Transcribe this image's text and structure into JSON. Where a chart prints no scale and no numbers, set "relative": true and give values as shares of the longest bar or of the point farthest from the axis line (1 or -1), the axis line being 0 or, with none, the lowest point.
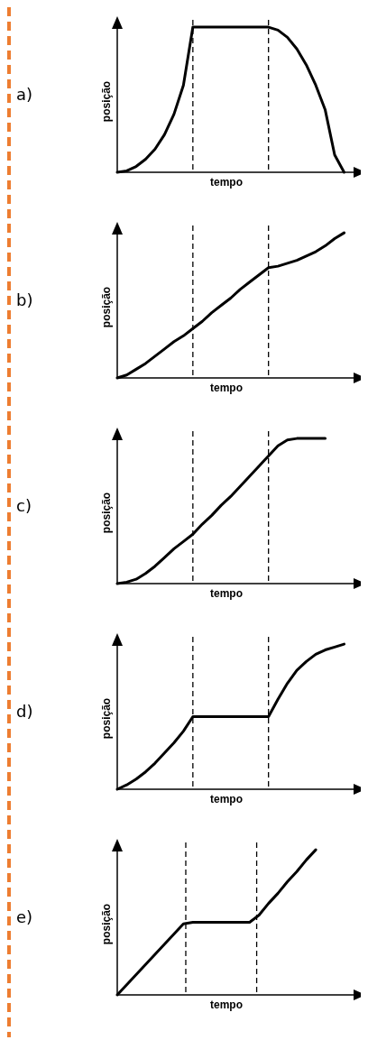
{
  "chart_data": [
    {
      "type": "line",
      "title": "a)",
      "xlabel": "tempo",
      "ylabel": "posição",
      "relative": true,
      "categories": [
        null,
        null,
        null,
        null,
        null,
        null,
        null,
        null,
        null,
        null,
        null,
        null,
        null,
        null,
        null,
        null,
        null,
        null,
        null,
        null,
        null,
        null,
        null,
        null,
        null
      ],
      "series": [
        {
          "color": "#000000",
          "values": [
            0,
            0.01,
            0.04,
            0.09,
            0.16,
            0.26,
            0.4,
            0.6,
            1,
            1,
            1,
            1,
            1,
            1,
            1,
            1,
            1,
            0.98,
            0.93,
            0.85,
            0.74,
            0.6,
            0.43,
            0.12,
            0
          ]
        }
      ]
    },
    {
      "type": "line",
      "title": "b)",
      "xlabel": "tempo",
      "ylabel": "posição",
      "relative": true,
      "categories": [
        null,
        null,
        null,
        null,
        null,
        null,
        null,
        null,
        null,
        null,
        null,
        null,
        null,
        null,
        null,
        null,
        null,
        null,
        null,
        null,
        null,
        null,
        null,
        null,
        null
      ],
      "series": [
        {
          "color": "#000000",
          "values": [
            0,
            0.02,
            0.06,
            0.1,
            0.15,
            0.2,
            0.25,
            0.29,
            0.34,
            0.39,
            0.45,
            0.5,
            0.55,
            0.61,
            0.66,
            0.71,
            0.76,
            0.77,
            0.79,
            0.81,
            0.84,
            0.87,
            0.91,
            0.96,
            1
          ]
        }
      ]
    },
    {
      "type": "line",
      "title": "c)",
      "xlabel": "tempo",
      "ylabel": "posição",
      "relative": true,
      "categories": [
        null,
        null,
        null,
        null,
        null,
        null,
        null,
        null,
        null,
        null,
        null,
        null,
        null,
        null,
        null,
        null,
        null,
        null,
        null,
        null,
        null,
        null,
        null
      ],
      "series": [
        {
          "color": "#000000",
          "values": [
            0,
            0.01,
            0.03,
            0.07,
            0.12,
            0.18,
            0.24,
            0.29,
            0.34,
            0.41,
            0.47,
            0.54,
            0.6,
            0.67,
            0.74,
            0.81,
            0.88,
            0.95,
            0.99,
            1,
            1,
            1,
            1
          ]
        }
      ]
    },
    {
      "type": "line",
      "title": "d)",
      "xlabel": "tempo",
      "ylabel": "posição",
      "relative": true,
      "categories": [
        null,
        null,
        null,
        null,
        null,
        null,
        null,
        null,
        null,
        null,
        null,
        null,
        null,
        null,
        null,
        null,
        null,
        null,
        null,
        null,
        null,
        null,
        null,
        null,
        null
      ],
      "series": [
        {
          "color": "#000000",
          "values": [
            0,
            0.03,
            0.07,
            0.12,
            0.18,
            0.25,
            0.32,
            0.4,
            0.5,
            0.5,
            0.5,
            0.5,
            0.5,
            0.5,
            0.5,
            0.5,
            0.5,
            0.62,
            0.73,
            0.82,
            0.88,
            0.93,
            0.96,
            0.98,
            1
          ]
        }
      ]
    },
    {
      "type": "line",
      "title": "e)",
      "xlabel": "tempo",
      "ylabel": "posição",
      "relative": true,
      "categories": [
        null,
        null,
        null,
        null,
        null,
        null,
        null,
        null,
        null,
        null,
        null,
        null,
        null,
        null,
        null,
        null,
        null,
        null,
        null,
        null,
        null,
        null
      ],
      "series": [
        {
          "color": "#000000",
          "values": [
            0,
            0.07,
            0.14,
            0.21,
            0.28,
            0.35,
            0.42,
            0.49,
            0.5,
            0.5,
            0.5,
            0.5,
            0.5,
            0.5,
            0.5,
            0.55,
            0.63,
            0.7,
            0.78,
            0.85,
            0.93,
            1
          ]
        }
      ]
    }
  ]
}
